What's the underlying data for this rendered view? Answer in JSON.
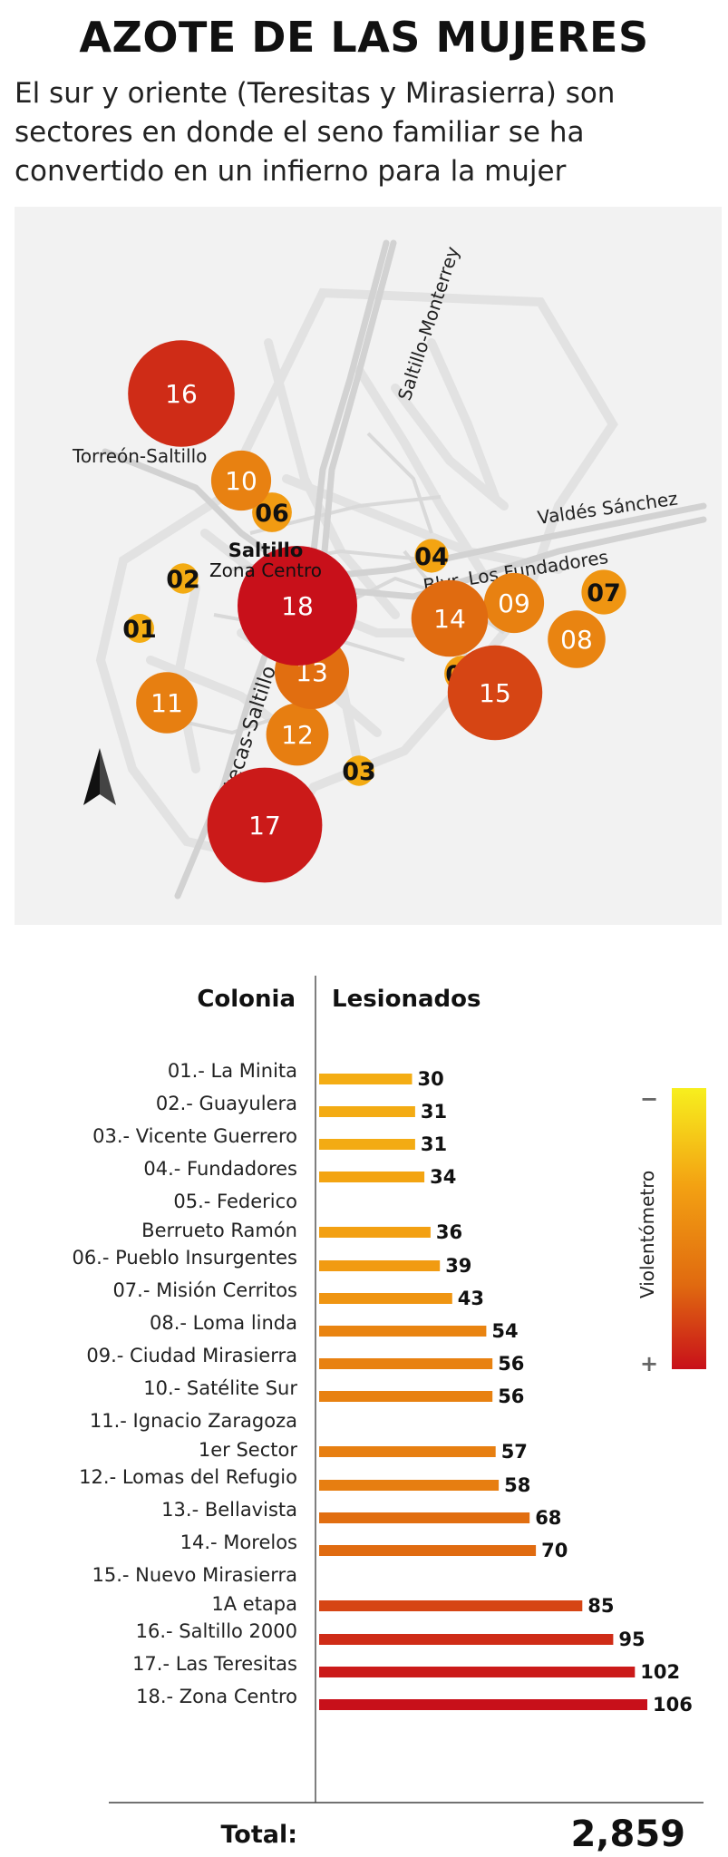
{
  "header": {
    "title": "AZOTE DE LAS MUJERES",
    "subtitle": "El sur y oriente (Teresitas y Mirasierra) son sectores en donde el seno familiar se ha convertido en un infierno para la mujer"
  },
  "map": {
    "road_labels": [
      "Saltillo-Monterrey",
      "Torreón-Saltillo",
      "Valdés Sánchez",
      "Blvr. Los Fundadores",
      "Zacatecas-Saltillo"
    ],
    "city_label": "Saltillo",
    "center_label": "Zona Centro",
    "north_arrow_icon": "north-arrow-icon",
    "markers": [
      {
        "id": "01",
        "value": 30
      },
      {
        "id": "02",
        "value": 31
      },
      {
        "id": "03",
        "value": 31
      },
      {
        "id": "04",
        "value": 34
      },
      {
        "id": "05",
        "value": 36
      },
      {
        "id": "06",
        "value": 39
      },
      {
        "id": "07",
        "value": 43
      },
      {
        "id": "08",
        "value": 54
      },
      {
        "id": "09",
        "value": 56
      },
      {
        "id": "10",
        "value": 56
      },
      {
        "id": "11",
        "value": 57
      },
      {
        "id": "12",
        "value": 58
      },
      {
        "id": "13",
        "value": 68
      },
      {
        "id": "14",
        "value": 70
      },
      {
        "id": "15",
        "value": 85
      },
      {
        "id": "16",
        "value": 95
      },
      {
        "id": "17",
        "value": 102
      },
      {
        "id": "18",
        "value": 106
      }
    ]
  },
  "chart_data": {
    "type": "bar",
    "orientation": "horizontal",
    "column_headers": {
      "category": "Colonia",
      "value": "Lesionados"
    },
    "categories": [
      [
        "01.- La Minita"
      ],
      [
        "02.- Guayulera"
      ],
      [
        "03.- Vicente Guerrero"
      ],
      [
        "04.- Fundadores"
      ],
      [
        "05.- Federico",
        "Berrueto Ramón"
      ],
      [
        "06.- Pueblo Insurgentes"
      ],
      [
        "07.- Misión Cerritos"
      ],
      [
        "08.- Loma linda"
      ],
      [
        "09.- Ciudad Mirasierra"
      ],
      [
        "10.- Satélite Sur"
      ],
      [
        "11.- Ignacio Zaragoza",
        "1er Sector"
      ],
      [
        "12.- Lomas del Refugio"
      ],
      [
        "13.- Bellavista"
      ],
      [
        "14.- Morelos"
      ],
      [
        "15.- Nuevo Mirasierra",
        "1A etapa"
      ],
      [
        "16.- Saltillo 2000"
      ],
      [
        "17.- Las Teresitas"
      ],
      [
        "18.- Zona Centro"
      ]
    ],
    "values": [
      30,
      31,
      31,
      34,
      36,
      39,
      43,
      54,
      56,
      56,
      57,
      58,
      68,
      70,
      85,
      95,
      102,
      106
    ],
    "xlim": [
      0,
      106
    ],
    "total_label": "Total:",
    "total_value": "2,859",
    "legend": {
      "title": "Violentómetro",
      "min_symbol": "−",
      "max_symbol": "+",
      "gradient": [
        "#f7ef1e",
        "#f3a112",
        "#e06a10",
        "#c8101a"
      ]
    }
  }
}
